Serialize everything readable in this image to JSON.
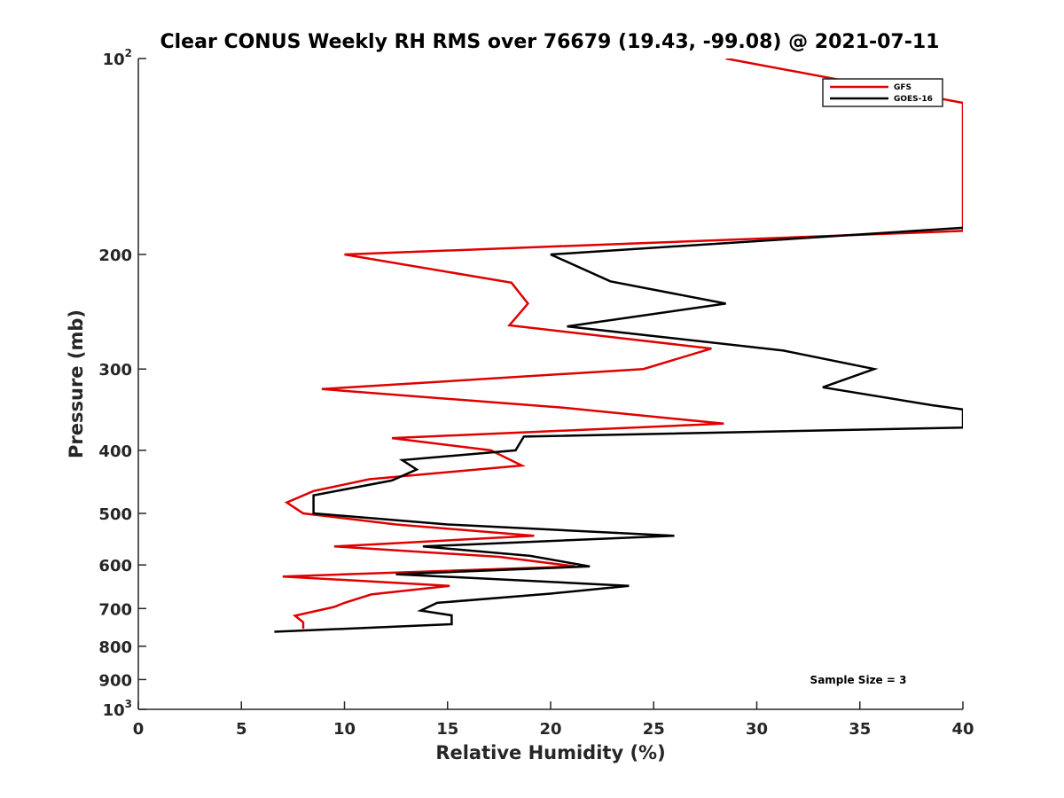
{
  "chart_data": {
    "type": "line",
    "title": "Clear CONUS Weekly RH RMS over 76679 (19.43, -99.08) @ 2021-07-11",
    "xlabel": "Relative Humidity (%)",
    "ylabel": "Pressure (mb)",
    "xlim": [
      0,
      40
    ],
    "ylim": [
      100,
      1000
    ],
    "yscale": "log",
    "y_reversed": true,
    "grid": false,
    "legend_placement": "top-right",
    "x_ticks": [
      "0",
      "5",
      "10",
      "15",
      "20",
      "25",
      "30",
      "35",
      "40"
    ],
    "y_ticks": [
      {
        "value": 100,
        "base": "10",
        "exp": "2"
      },
      {
        "value": 200,
        "label": "200"
      },
      {
        "value": 300,
        "label": "300"
      },
      {
        "value": 400,
        "label": "400"
      },
      {
        "value": 500,
        "label": "500"
      },
      {
        "value": 600,
        "label": "600"
      },
      {
        "value": 700,
        "label": "700"
      },
      {
        "value": 800,
        "label": "800"
      },
      {
        "value": 900,
        "label": "900"
      },
      {
        "value": 1000,
        "base": "10",
        "exp": "3"
      }
    ],
    "annotation": "Sample Size = 3",
    "series": [
      {
        "name": "GFS",
        "color": "#e00000",
        "points": [
          [
            28.5,
            100
          ],
          [
            40,
            117
          ],
          [
            40,
            184
          ],
          [
            10,
            200
          ],
          [
            18.1,
            221
          ],
          [
            18.9,
            238
          ],
          [
            18.0,
            257
          ],
          [
            27.8,
            279
          ],
          [
            24.5,
            300
          ],
          [
            8.9,
            322
          ],
          [
            20.6,
            344
          ],
          [
            28.4,
            364
          ],
          [
            12.3,
            383
          ],
          [
            17.1,
            400
          ],
          [
            18.6,
            422
          ],
          [
            11.2,
            443
          ],
          [
            8.5,
            462
          ],
          [
            7.2,
            481
          ],
          [
            8.0,
            500
          ],
          [
            12.5,
            520
          ],
          [
            19.2,
            541
          ],
          [
            9.5,
            562
          ],
          [
            17.5,
            583
          ],
          [
            21.2,
            603
          ],
          [
            7.0,
            625
          ],
          [
            15.1,
            646
          ],
          [
            11.3,
            666
          ],
          [
            10.0,
            686
          ],
          [
            9.5,
            696
          ],
          [
            7.6,
            718
          ],
          [
            8.0,
            735
          ],
          [
            8.0,
            752
          ]
        ]
      },
      {
        "name": "GOES-16",
        "color": "#000000",
        "points": [
          [
            40,
            182
          ],
          [
            20.0,
            200
          ],
          [
            22.9,
            220
          ],
          [
            28.5,
            238
          ],
          [
            20.8,
            258
          ],
          [
            31.3,
            281
          ],
          [
            35.7,
            300
          ],
          [
            33.2,
            320
          ],
          [
            38.5,
            341
          ],
          [
            40,
            346
          ],
          [
            40,
            369
          ],
          [
            18.7,
            381
          ],
          [
            18.3,
            400
          ],
          [
            12.8,
            414
          ],
          [
            13.5,
            428
          ],
          [
            12.3,
            445
          ],
          [
            8.5,
            469
          ],
          [
            8.5,
            500
          ],
          [
            15.0,
            520
          ],
          [
            26.0,
            541
          ],
          [
            13.8,
            562
          ],
          [
            19.0,
            581
          ],
          [
            21.9,
            603
          ],
          [
            12.5,
            620
          ],
          [
            23.8,
            646
          ],
          [
            20.0,
            664
          ],
          [
            14.5,
            686
          ],
          [
            13.7,
            705
          ],
          [
            15.2,
            717
          ],
          [
            15.2,
            740
          ],
          [
            6.6,
            760
          ]
        ]
      }
    ]
  }
}
